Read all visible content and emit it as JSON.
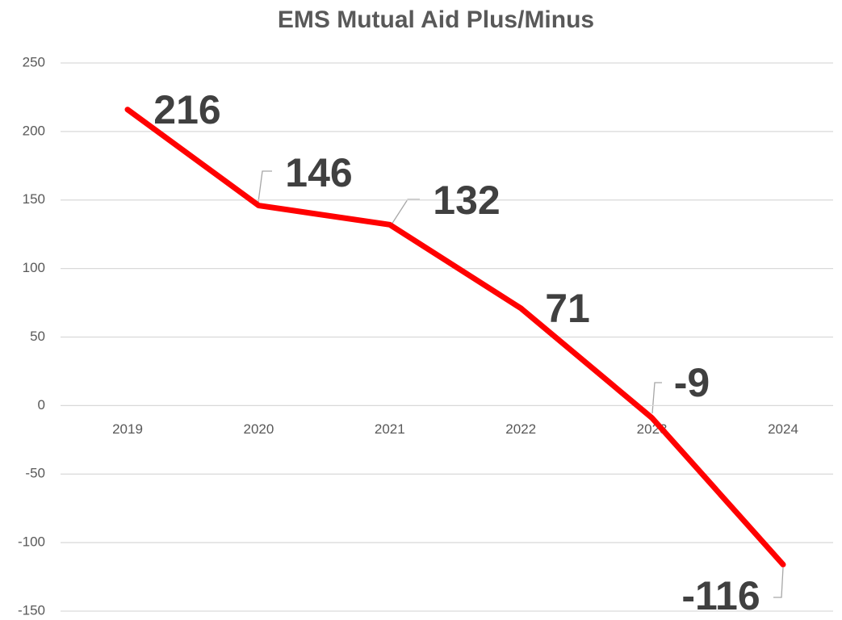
{
  "chart_data": {
    "type": "line",
    "title": "EMS Mutual Aid Plus/Minus",
    "categories": [
      "2019",
      "2020",
      "2021",
      "2022",
      "2023",
      "2024"
    ],
    "series": [
      {
        "name": "EMS Mutual Aid Plus/Minus",
        "color": "#ff0000",
        "values": [
          216,
          146,
          132,
          71,
          -9,
          -116
        ]
      }
    ],
    "ylim": [
      -150,
      250
    ],
    "yticks": [
      -150,
      -100,
      -50,
      0,
      50,
      100,
      150,
      200,
      250
    ],
    "grid": true
  }
}
